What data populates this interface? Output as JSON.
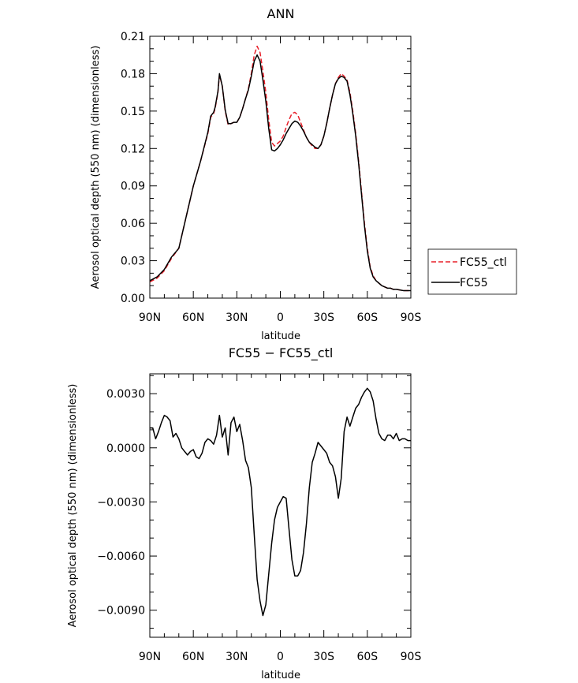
{
  "legend": {
    "entries": [
      {
        "label": "FC55_ctl",
        "color": "#e8202a",
        "dash": true
      },
      {
        "label": "FC55",
        "color": "#000000",
        "dash": false
      }
    ]
  },
  "chart_data": [
    {
      "type": "line",
      "title": "ANN",
      "xlabel": "latitude",
      "ylabel": "Aerosol optical depth (550 nm) (dimensionless)",
      "xlim": [
        -90,
        90
      ],
      "ylim": [
        0.0,
        0.21
      ],
      "xticks": [
        -90,
        -60,
        -30,
        0,
        30,
        60,
        90
      ],
      "xticklabels": [
        "90N",
        "60N",
        "30N",
        "0",
        "30S",
        "60S",
        "90S"
      ],
      "yticks": [
        0.0,
        0.03,
        0.06,
        0.09,
        0.12,
        0.15,
        0.18,
        0.21
      ],
      "yticklabels": [
        "0.00",
        "0.03",
        "0.06",
        "0.09",
        "0.12",
        "0.15",
        "0.18",
        "0.21"
      ],
      "legend_position": "right",
      "x": [
        -90,
        -85,
        -80,
        -75,
        -70,
        -65,
        -60,
        -55,
        -50,
        -48,
        -46,
        -45,
        -43,
        -42,
        -40,
        -38,
        -36,
        -34,
        -32,
        -30,
        -28,
        -26,
        -24,
        -22,
        -20,
        -18,
        -16,
        -14,
        -12,
        -10,
        -8,
        -6,
        -4,
        -2,
        0,
        2,
        4,
        6,
        8,
        10,
        12,
        14,
        16,
        18,
        20,
        22,
        24,
        26,
        28,
        30,
        32,
        34,
        36,
        38,
        40,
        42,
        44,
        46,
        48,
        50,
        52,
        54,
        56,
        58,
        60,
        62,
        64,
        66,
        68,
        70,
        72,
        74,
        76,
        78,
        80,
        85,
        90
      ],
      "series": [
        {
          "name": "FC55_ctl",
          "color": "#e8202a",
          "dash": true,
          "values": [
            0.013,
            0.016,
            0.022,
            0.032,
            0.04,
            0.065,
            0.09,
            0.11,
            0.132,
            0.145,
            0.148,
            0.152,
            0.165,
            0.179,
            0.17,
            0.15,
            0.139,
            0.14,
            0.141,
            0.141,
            0.145,
            0.152,
            0.16,
            0.168,
            0.18,
            0.195,
            0.202,
            0.197,
            0.182,
            0.165,
            0.143,
            0.125,
            0.122,
            0.124,
            0.126,
            0.13,
            0.137,
            0.143,
            0.148,
            0.149,
            0.147,
            0.141,
            0.135,
            0.129,
            0.125,
            0.122,
            0.12,
            0.12,
            0.123,
            0.13,
            0.14,
            0.152,
            0.163,
            0.172,
            0.177,
            0.18,
            0.178,
            0.175,
            0.165,
            0.15,
            0.132,
            0.11,
            0.085,
            0.06,
            0.04,
            0.025,
            0.018,
            0.014,
            0.012,
            0.01,
            0.009,
            0.008,
            0.008,
            0.007,
            0.007,
            0.006,
            0.006
          ]
        },
        {
          "name": "FC55",
          "color": "#000000",
          "dash": false,
          "values": [
            0.014,
            0.017,
            0.023,
            0.033,
            0.04,
            0.065,
            0.09,
            0.11,
            0.133,
            0.146,
            0.149,
            0.153,
            0.166,
            0.18,
            0.17,
            0.151,
            0.14,
            0.14,
            0.141,
            0.141,
            0.145,
            0.152,
            0.16,
            0.167,
            0.178,
            0.19,
            0.195,
            0.19,
            0.175,
            0.158,
            0.136,
            0.119,
            0.118,
            0.12,
            0.123,
            0.127,
            0.132,
            0.136,
            0.14,
            0.142,
            0.141,
            0.138,
            0.134,
            0.129,
            0.125,
            0.123,
            0.121,
            0.12,
            0.123,
            0.13,
            0.14,
            0.152,
            0.163,
            0.172,
            0.176,
            0.178,
            0.177,
            0.174,
            0.163,
            0.148,
            0.13,
            0.108,
            0.083,
            0.058,
            0.038,
            0.024,
            0.017,
            0.014,
            0.012,
            0.01,
            0.009,
            0.008,
            0.008,
            0.007,
            0.007,
            0.006,
            0.006
          ]
        }
      ]
    },
    {
      "type": "line",
      "title": "FC55 − FC55_ctl",
      "xlabel": "latitude",
      "ylabel": "Aerosol optical depth (550 nm) (dimensionless)",
      "xlim": [
        -90,
        90
      ],
      "ylim": [
        -0.0105,
        0.0041
      ],
      "xticks": [
        -90,
        -60,
        -30,
        0,
        30,
        60,
        90
      ],
      "xticklabels": [
        "90N",
        "60N",
        "30N",
        "0",
        "30S",
        "60S",
        "90S"
      ],
      "yticks": [
        -0.009,
        -0.006,
        -0.003,
        0.0,
        0.003
      ],
      "yticklabels": [
        "−0.0090",
        "−0.0060",
        "−0.0030",
        "0.0000",
        "0.0030"
      ],
      "x": [
        -90,
        -88,
        -86,
        -84,
        -82,
        -80,
        -78,
        -76,
        -74,
        -72,
        -70,
        -68,
        -66,
        -64,
        -62,
        -60,
        -58,
        -56,
        -54,
        -52,
        -50,
        -48,
        -46,
        -44,
        -42,
        -40,
        -38,
        -36,
        -34,
        -32,
        -30,
        -28,
        -26,
        -24,
        -22,
        -20,
        -18,
        -16,
        -14,
        -12,
        -10,
        -8,
        -6,
        -4,
        -2,
        0,
        2,
        4,
        6,
        8,
        10,
        12,
        14,
        16,
        18,
        20,
        22,
        24,
        26,
        28,
        30,
        32,
        34,
        36,
        38,
        40,
        42,
        44,
        46,
        48,
        50,
        52,
        54,
        56,
        58,
        60,
        62,
        64,
        66,
        68,
        70,
        72,
        74,
        76,
        78,
        80,
        82,
        84,
        86,
        88,
        90
      ],
      "series": [
        {
          "name": "FC55",
          "color": "#000000",
          "dash": false,
          "values": [
            0.0011,
            0.0011,
            0.0005,
            0.0009,
            0.0014,
            0.0018,
            0.0017,
            0.0015,
            0.0006,
            0.0008,
            0.0005,
            0.0,
            -0.0002,
            -0.0004,
            -0.0002,
            -0.0001,
            -0.0005,
            -0.0006,
            -0.0003,
            0.0003,
            0.0005,
            0.0004,
            0.0002,
            0.0007,
            0.0018,
            0.0006,
            0.0011,
            -0.0004,
            0.0014,
            0.0017,
            0.0009,
            0.0013,
            0.0004,
            -0.0007,
            -0.0011,
            -0.0022,
            -0.0048,
            -0.0073,
            -0.0085,
            -0.0093,
            -0.0087,
            -0.007,
            -0.0053,
            -0.004,
            -0.0033,
            -0.003,
            -0.0027,
            -0.0028,
            -0.0045,
            -0.0062,
            -0.0071,
            -0.0071,
            -0.0068,
            -0.0058,
            -0.0042,
            -0.0022,
            -0.0008,
            -0.0003,
            0.0003,
            0.0001,
            -0.0001,
            -0.0003,
            -0.0008,
            -0.001,
            -0.0016,
            -0.0028,
            -0.0017,
            0.0009,
            0.0017,
            0.0012,
            0.0017,
            0.0022,
            0.0024,
            0.0028,
            0.0031,
            0.0033,
            0.0031,
            0.0026,
            0.0016,
            0.0008,
            0.0005,
            0.0004,
            0.0007,
            0.0007,
            0.0005,
            0.0008,
            0.0004,
            0.0005,
            0.0005,
            0.0004,
            0.0004
          ]
        }
      ]
    }
  ]
}
